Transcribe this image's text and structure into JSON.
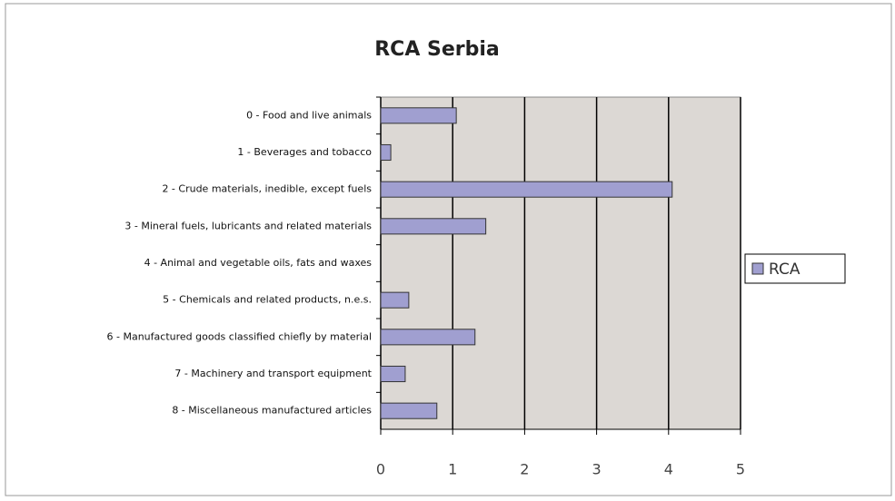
{
  "chart_data": {
    "type": "bar",
    "orientation": "horizontal",
    "title": "RCA Serbia",
    "categories": [
      "0 - Food and live animals",
      "1 - Beverages and tobacco",
      "2 - Crude materials, inedible, except fuels",
      "3 - Mineral fuels, lubricants and related materials",
      "4 - Animal and vegetable oils, fats and waxes",
      "5 - Chemicals and related products, n.e.s.",
      "6 - Manufactured goods classified chiefly by material",
      "7 - Machinery and transport equipment",
      "8 - Miscellaneous manufactured articles"
    ],
    "series": [
      {
        "name": "RCA",
        "color": "#a09fd0",
        "values": [
          1.05,
          0.14,
          4.05,
          1.46,
          0,
          0.39,
          1.31,
          0.34,
          0.78
        ]
      }
    ],
    "xlim": [
      0,
      5
    ],
    "xticks": [
      0,
      1,
      2,
      3,
      4,
      5
    ],
    "grid": true,
    "legend": "right"
  }
}
